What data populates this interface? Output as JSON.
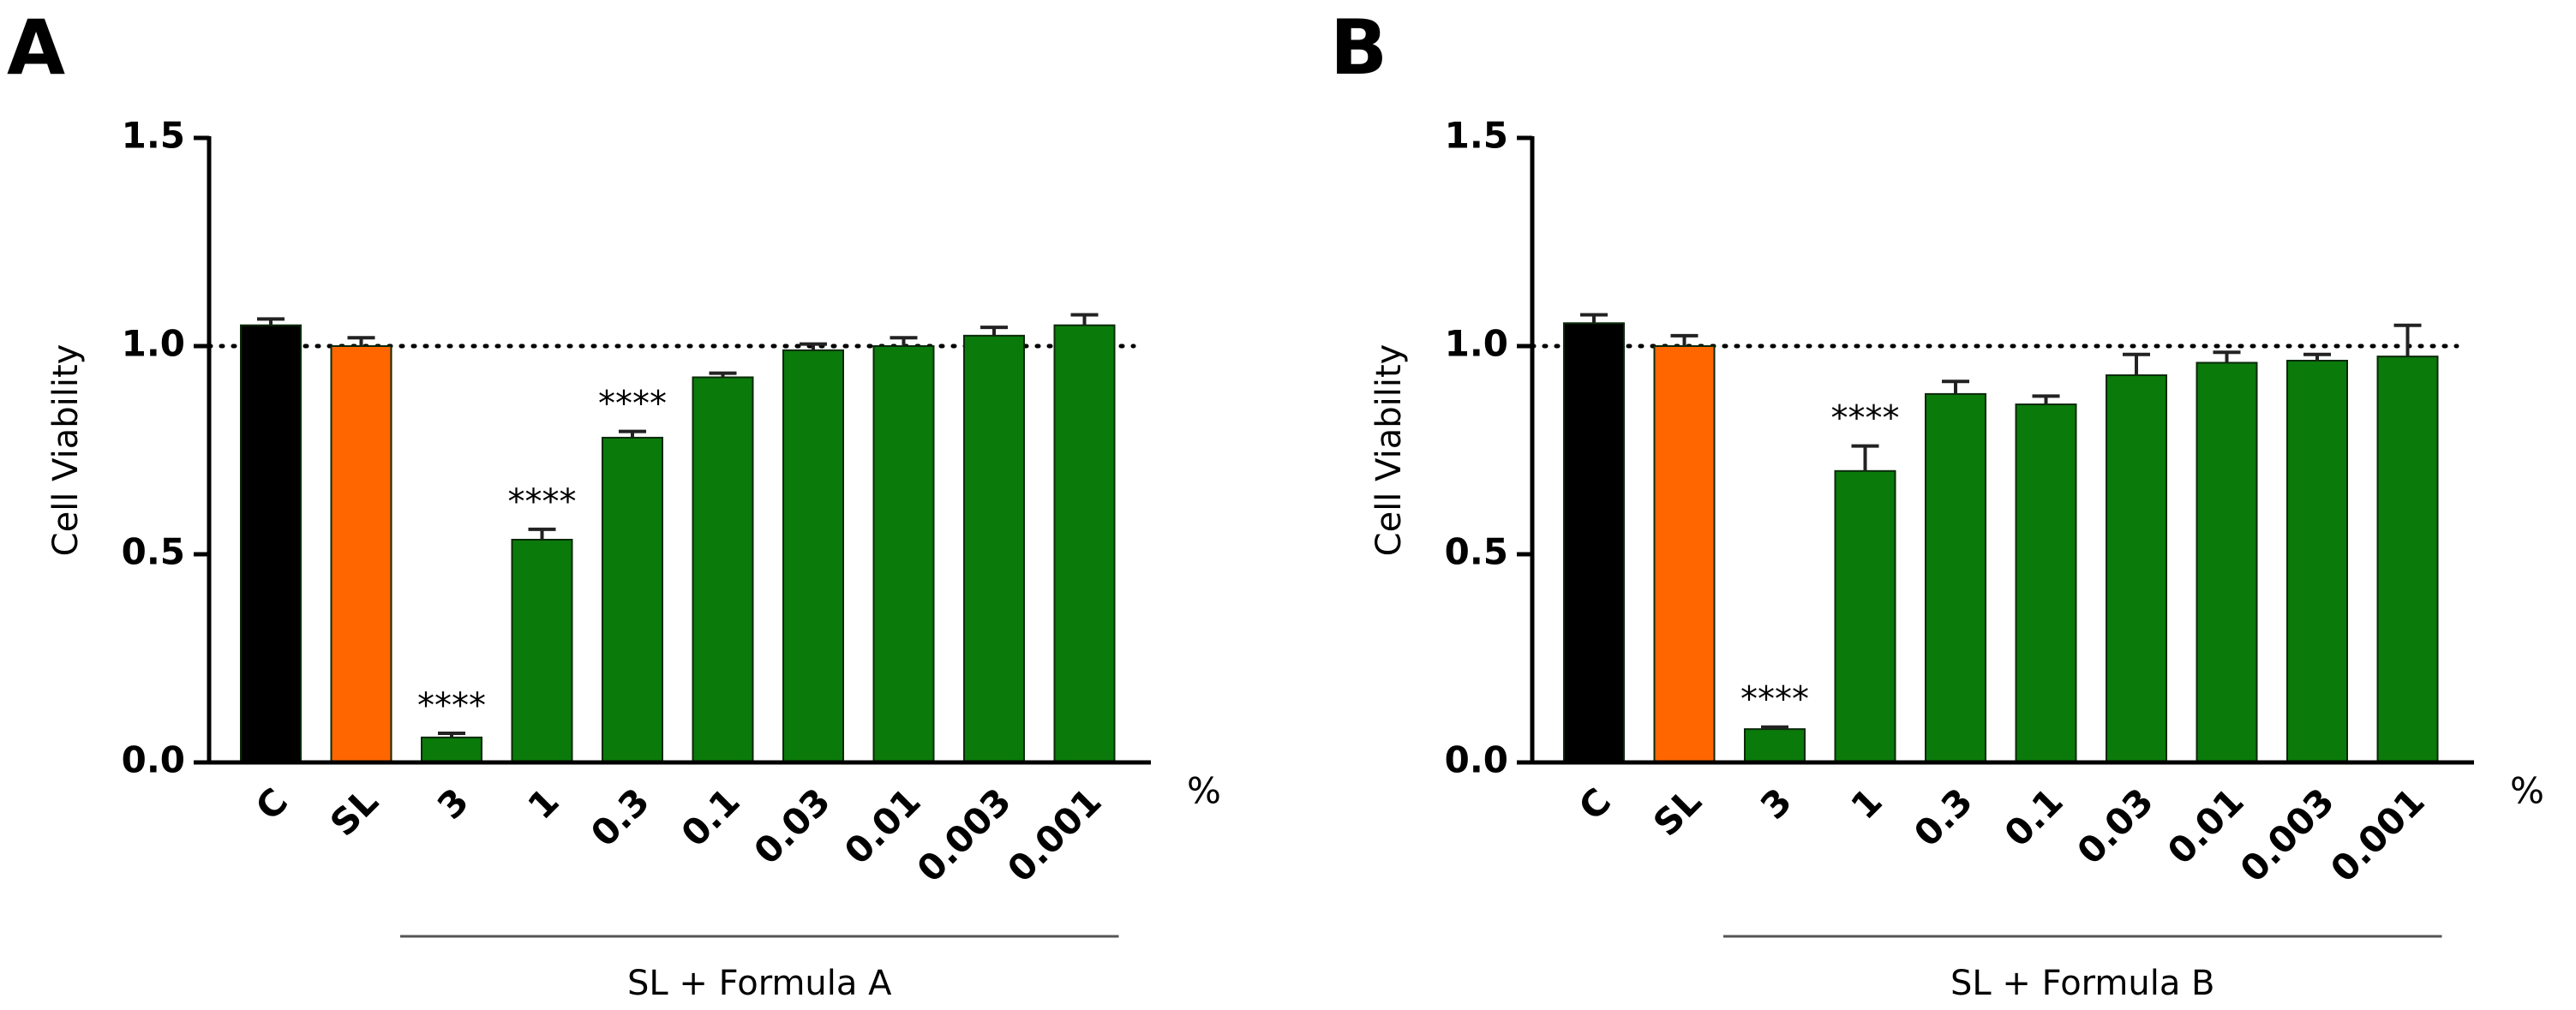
{
  "chart_data": [
    {
      "type": "bar",
      "panel_label": "A",
      "ylabel": "Cell Viability",
      "categories": [
        "C",
        "SL",
        "3",
        "1",
        "0.3",
        "0.1",
        "0.03",
        "0.01",
        "0.003",
        "0.001"
      ],
      "values": [
        1.05,
        1.0,
        0.06,
        0.535,
        0.78,
        0.925,
        0.99,
        1.0,
        1.025,
        1.05
      ],
      "errors": [
        0.015,
        0.02,
        0.01,
        0.025,
        0.015,
        0.01,
        0.015,
        0.02,
        0.02,
        0.025
      ],
      "colors": [
        "#000000",
        "#ff6600",
        "#0a7a0a",
        "#0a7a0a",
        "#0a7a0a",
        "#0a7a0a",
        "#0a7a0a",
        "#0a7a0a",
        "#0a7a0a",
        "#0a7a0a"
      ],
      "significance": [
        null,
        null,
        "****",
        "****",
        "****",
        null,
        null,
        null,
        null,
        null
      ],
      "reference_line": 1,
      "group_label": "SL + Formula A",
      "unit_label": "%",
      "ylim": [
        0,
        1.5
      ],
      "yticks": [
        {
          "value": 0,
          "label": "0.0"
        },
        0.5,
        {
          "value": 1,
          "label": "1.0"
        },
        1.5
      ]
    },
    {
      "type": "bar",
      "panel_label": "B",
      "ylabel": "Cell Viability",
      "categories": [
        "C",
        "SL",
        "3",
        "1",
        "0.3",
        "0.1",
        "0.03",
        "0.01",
        "0.003",
        "0.001"
      ],
      "values": [
        1.055,
        1.0,
        0.08,
        0.7,
        0.885,
        0.86,
        0.93,
        0.96,
        0.965,
        0.975
      ],
      "errors": [
        0.02,
        0.025,
        0.005,
        0.06,
        0.03,
        0.02,
        0.05,
        0.025,
        0.015,
        0.075
      ],
      "colors": [
        "#000000",
        "#ff6600",
        "#0a7a0a",
        "#0a7a0a",
        "#0a7a0a",
        "#0a7a0a",
        "#0a7a0a",
        "#0a7a0a",
        "#0a7a0a",
        "#0a7a0a"
      ],
      "significance": [
        null,
        null,
        "****",
        "****",
        null,
        null,
        null,
        null,
        null,
        null
      ],
      "reference_line": 1,
      "group_label": "SL + Formula B",
      "unit_label": "%",
      "ylim": [
        0,
        1.5
      ],
      "yticks": [
        {
          "value": 0,
          "label": "0.0"
        },
        0.5,
        {
          "value": 1,
          "label": "1.0"
        },
        1.5
      ]
    }
  ]
}
